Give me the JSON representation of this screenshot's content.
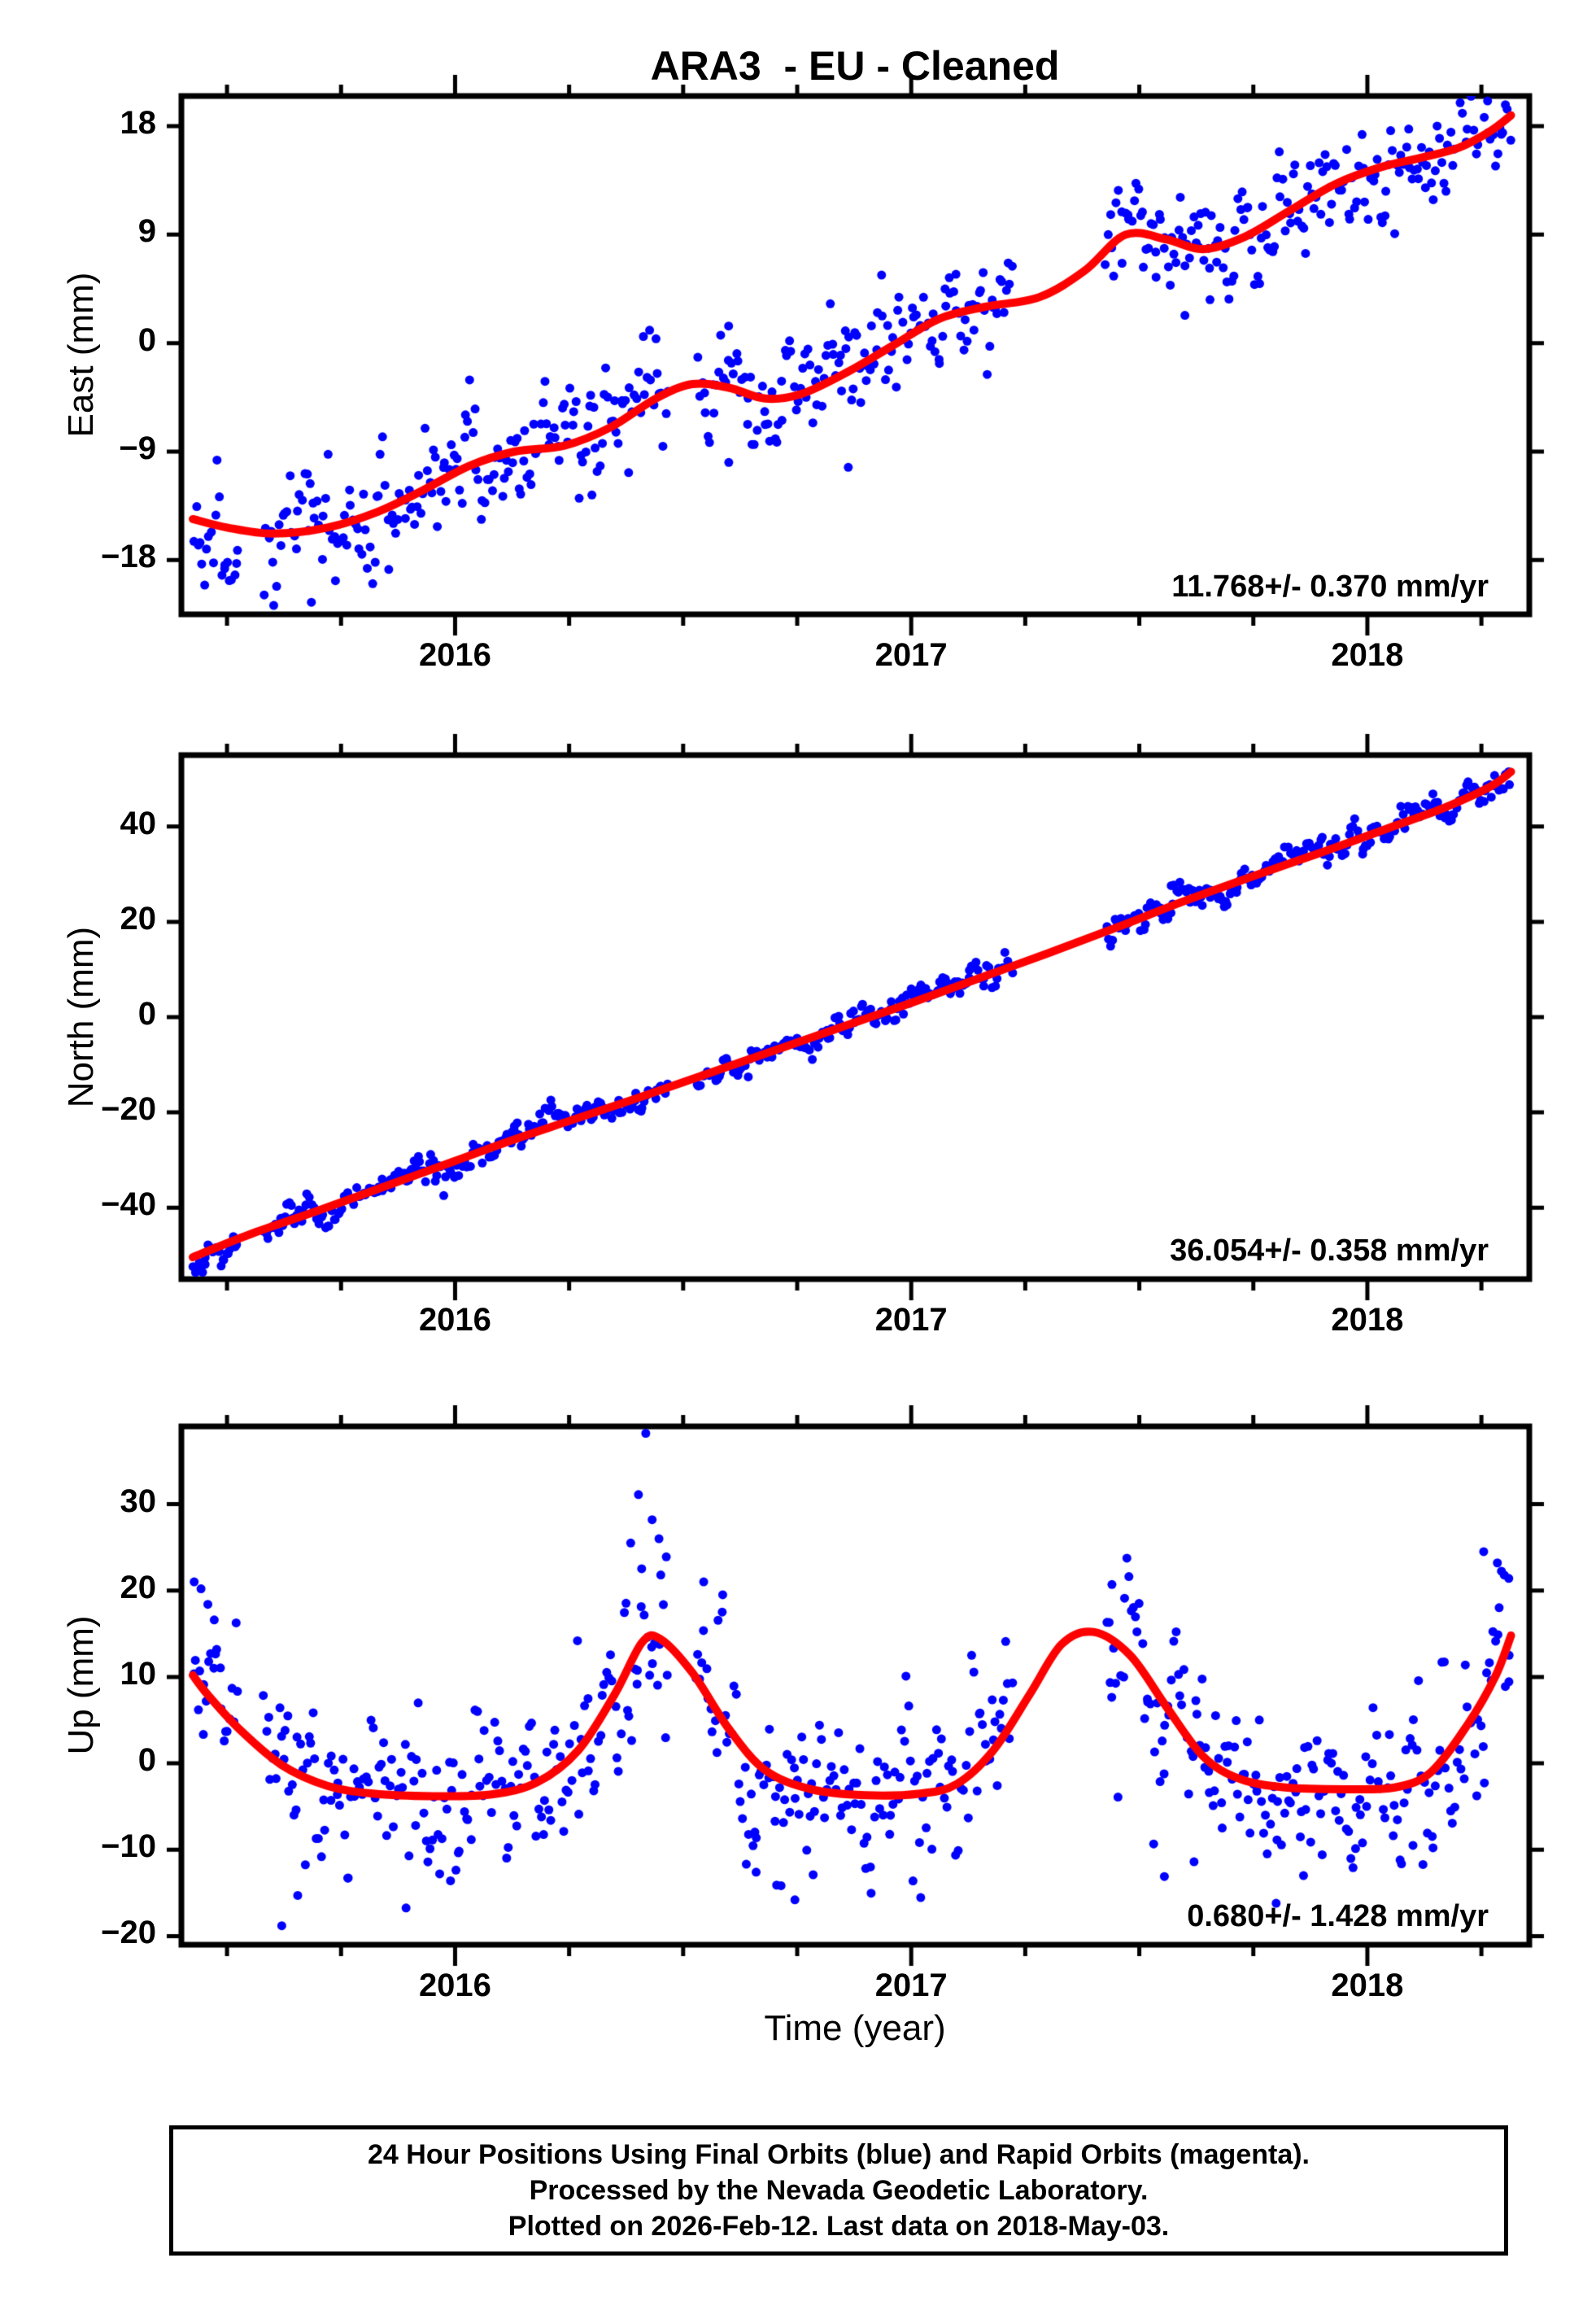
{
  "title": "ARA3  - EU - Cleaned",
  "station": "ARA3",
  "reference_frame": "EU",
  "solution_type": "Cleaned",
  "colors": {
    "final_orbit_points": "#0000ff",
    "rapid_orbit_points": "#ff00ff",
    "model_curve": "#ff0000",
    "frame": "#000000",
    "background": "#ffffff"
  },
  "xaxis": {
    "label": "Time (year)",
    "range": [
      2015.4,
      2018.355
    ],
    "major_ticks": [
      {
        "v": 2016,
        "label": "2016"
      },
      {
        "v": 2017,
        "label": "2017"
      },
      {
        "v": 2018,
        "label": "2018"
      }
    ],
    "minor_step": 0.25
  },
  "footer": {
    "lines": [
      "24 Hour Positions Using Final Orbits (blue) and Rapid Orbits (magenta).",
      "Processed by the Nevada Geodetic Laboratory.",
      "Plotted on 2026-Feb-12. Last data on 2018-May-03."
    ]
  },
  "chart_data": [
    {
      "type": "scatter",
      "component": "East",
      "ylabel": "East (mm)",
      "ylim": [
        -22.5,
        20.5
      ],
      "yticks": [
        {
          "v": 18,
          "label": "18"
        },
        {
          "v": 9,
          "label": "9"
        },
        {
          "v": 0,
          "label": "0"
        },
        {
          "v": -9,
          "label": "−9"
        },
        {
          "v": -18,
          "label": "−18"
        }
      ],
      "annotation": "11.768+/- 0.370 mm/yr",
      "velocity_mm_per_yr": 11.768,
      "velocity_sigma_mm_per_yr": 0.37,
      "model_curve": [
        [
          2015.425,
          -14.6
        ],
        [
          2015.5,
          -15.3
        ],
        [
          2015.6,
          -15.8
        ],
        [
          2015.72,
          -15.3
        ],
        [
          2015.83,
          -14.0
        ],
        [
          2015.93,
          -12.2
        ],
        [
          2016.03,
          -10.2
        ],
        [
          2016.13,
          -9.0
        ],
        [
          2016.24,
          -8.5
        ],
        [
          2016.34,
          -7.0
        ],
        [
          2016.44,
          -4.6
        ],
        [
          2016.52,
          -3.4
        ],
        [
          2016.6,
          -3.7
        ],
        [
          2016.68,
          -4.6
        ],
        [
          2016.76,
          -4.2
        ],
        [
          2016.86,
          -2.4
        ],
        [
          2016.96,
          -0.2
        ],
        [
          2017.06,
          2.0
        ],
        [
          2017.16,
          3.0
        ],
        [
          2017.28,
          3.8
        ],
        [
          2017.38,
          6.0
        ],
        [
          2017.47,
          9.0
        ],
        [
          2017.56,
          8.6
        ],
        [
          2017.64,
          7.8
        ],
        [
          2017.73,
          8.8
        ],
        [
          2017.83,
          11.0
        ],
        [
          2017.93,
          13.2
        ],
        [
          2018.03,
          14.6
        ],
        [
          2018.12,
          15.4
        ],
        [
          2018.2,
          16.2
        ],
        [
          2018.27,
          17.6
        ],
        [
          2018.315,
          18.9
        ]
      ],
      "scatter": {
        "n": 620,
        "sigma": 2.4,
        "ar": 0.5,
        "heavy_tail": 0.05,
        "seed": 11,
        "t_start": 2015.425,
        "t_end": 2018.315,
        "gaps": [
          [
            2015.523,
            2015.578
          ],
          [
            2016.468,
            2016.528
          ],
          [
            2017.225,
            2017.425
          ]
        ],
        "outliers": [
          [
            2015.685,
            -21.5
          ],
          [
            2016.3,
            -12.6
          ],
          [
            2016.6,
            -9.9
          ],
          [
            2016.862,
            -10.3
          ],
          [
            2017.6,
            2.3
          ],
          [
            2017.655,
            3.6
          ]
        ]
      }
    },
    {
      "type": "scatter",
      "component": "North",
      "ylabel": "North (mm)",
      "ylim": [
        -55,
        55
      ],
      "yticks": [
        {
          "v": 40,
          "label": "40"
        },
        {
          "v": 20,
          "label": "20"
        },
        {
          "v": 0,
          "label": "0"
        },
        {
          "v": -20,
          "label": "−20"
        },
        {
          "v": -40,
          "label": "−40"
        }
      ],
      "annotation": "36.054+/- 0.358 mm/yr",
      "velocity_mm_per_yr": 36.054,
      "velocity_sigma_mm_per_yr": 0.358,
      "model_curve": [
        [
          2015.425,
          -50.4
        ],
        [
          2015.55,
          -45.6
        ],
        [
          2015.7,
          -40.6
        ],
        [
          2015.85,
          -35.4
        ],
        [
          2016.0,
          -30.2
        ],
        [
          2016.12,
          -26.0
        ],
        [
          2016.25,
          -21.8
        ],
        [
          2016.4,
          -17.0
        ],
        [
          2016.55,
          -12.0
        ],
        [
          2016.7,
          -7.0
        ],
        [
          2016.85,
          -2.0
        ],
        [
          2017.0,
          3.0
        ],
        [
          2017.15,
          8.2
        ],
        [
          2017.3,
          13.4
        ],
        [
          2017.45,
          18.8
        ],
        [
          2017.6,
          24.4
        ],
        [
          2017.75,
          29.6
        ],
        [
          2017.9,
          34.6
        ],
        [
          2018.05,
          39.8
        ],
        [
          2018.17,
          44.0
        ],
        [
          2018.27,
          48.4
        ],
        [
          2018.315,
          51.5
        ]
      ],
      "scatter": {
        "n": 640,
        "sigma": 1.6,
        "ar": 0.6,
        "heavy_tail": 0.04,
        "seed": 23,
        "t_start": 2015.425,
        "t_end": 2018.315,
        "gaps": [
          [
            2015.523,
            2015.578
          ],
          [
            2016.468,
            2016.528
          ],
          [
            2017.225,
            2017.425
          ]
        ],
        "outliers": [
          [
            2015.437,
            -52.6
          ],
          [
            2015.452,
            -51.9
          ],
          [
            2016.13,
            -22.9
          ],
          [
            2017.57,
            27.6
          ]
        ]
      }
    },
    {
      "type": "scatter",
      "component": "Up",
      "ylabel": "Up (mm)",
      "ylim": [
        -21,
        39
      ],
      "yticks": [
        {
          "v": 30,
          "label": "30"
        },
        {
          "v": 20,
          "label": "20"
        },
        {
          "v": 10,
          "label": "10"
        },
        {
          "v": 0,
          "label": "0"
        },
        {
          "v": -10,
          "label": "−10"
        },
        {
          "v": -20,
          "label": "−20"
        }
      ],
      "annotation": "0.680+/- 1.428 mm/yr",
      "velocity_mm_per_yr": 0.68,
      "velocity_sigma_mm_per_yr": 1.428,
      "model_curve": [
        [
          2015.425,
          10.2
        ],
        [
          2015.46,
          7.8
        ],
        [
          2015.53,
          3.8
        ],
        [
          2015.62,
          -0.2
        ],
        [
          2015.72,
          -2.6
        ],
        [
          2015.82,
          -3.5
        ],
        [
          2015.95,
          -3.8
        ],
        [
          2016.08,
          -3.6
        ],
        [
          2016.18,
          -2.2
        ],
        [
          2016.27,
          1.5
        ],
        [
          2016.35,
          8.0
        ],
        [
          2016.41,
          14.0
        ],
        [
          2016.45,
          14.4
        ],
        [
          2016.52,
          10.5
        ],
        [
          2016.6,
          4.0
        ],
        [
          2016.68,
          -0.8
        ],
        [
          2016.78,
          -3.0
        ],
        [
          2016.9,
          -3.7
        ],
        [
          2017.02,
          -3.5
        ],
        [
          2017.1,
          -2.4
        ],
        [
          2017.18,
          1.5
        ],
        [
          2017.26,
          8.0
        ],
        [
          2017.33,
          13.8
        ],
        [
          2017.4,
          15.2
        ],
        [
          2017.48,
          12.5
        ],
        [
          2017.56,
          6.5
        ],
        [
          2017.64,
          0.8
        ],
        [
          2017.72,
          -1.8
        ],
        [
          2017.82,
          -2.8
        ],
        [
          2017.95,
          -3.0
        ],
        [
          2018.06,
          -2.8
        ],
        [
          2018.14,
          -1.0
        ],
        [
          2018.22,
          4.5
        ],
        [
          2018.28,
          10.0
        ],
        [
          2018.315,
          14.8
        ]
      ],
      "scatter": {
        "n": 620,
        "sigma": 4.8,
        "ar": 0.45,
        "heavy_tail": 0.07,
        "seed": 37,
        "t_start": 2015.425,
        "t_end": 2018.315,
        "gaps": [
          [
            2015.523,
            2015.578
          ],
          [
            2016.468,
            2016.528
          ],
          [
            2017.225,
            2017.425
          ]
        ],
        "outliers": [
          [
            2015.428,
            21.0
          ],
          [
            2015.443,
            20.2
          ],
          [
            2015.458,
            18.4
          ],
          [
            2015.472,
            16.6
          ],
          [
            2015.62,
            -18.8
          ],
          [
            2015.655,
            -15.3
          ],
          [
            2015.99,
            -13.6
          ],
          [
            2016.385,
            25.5
          ],
          [
            2016.402,
            31.1
          ],
          [
            2016.418,
            38.2
          ],
          [
            2016.432,
            28.2
          ],
          [
            2016.447,
            26.0
          ],
          [
            2016.463,
            23.9
          ],
          [
            2016.545,
            21.0
          ],
          [
            2016.66,
            -12.6
          ],
          [
            2016.705,
            -14.1
          ],
          [
            2016.745,
            -15.8
          ],
          [
            2016.785,
            -12.9
          ],
          [
            2017.44,
            20.7
          ],
          [
            2017.555,
            -13.1
          ],
          [
            2017.62,
            -11.4
          ],
          [
            2017.8,
            -16.2
          ],
          [
            2017.86,
            -13.0
          ],
          [
            2018.1,
            -9.5
          ],
          [
            2018.255,
            24.5
          ],
          [
            2018.285,
            23.2
          ],
          [
            2018.31,
            21.4
          ]
        ]
      }
    }
  ]
}
